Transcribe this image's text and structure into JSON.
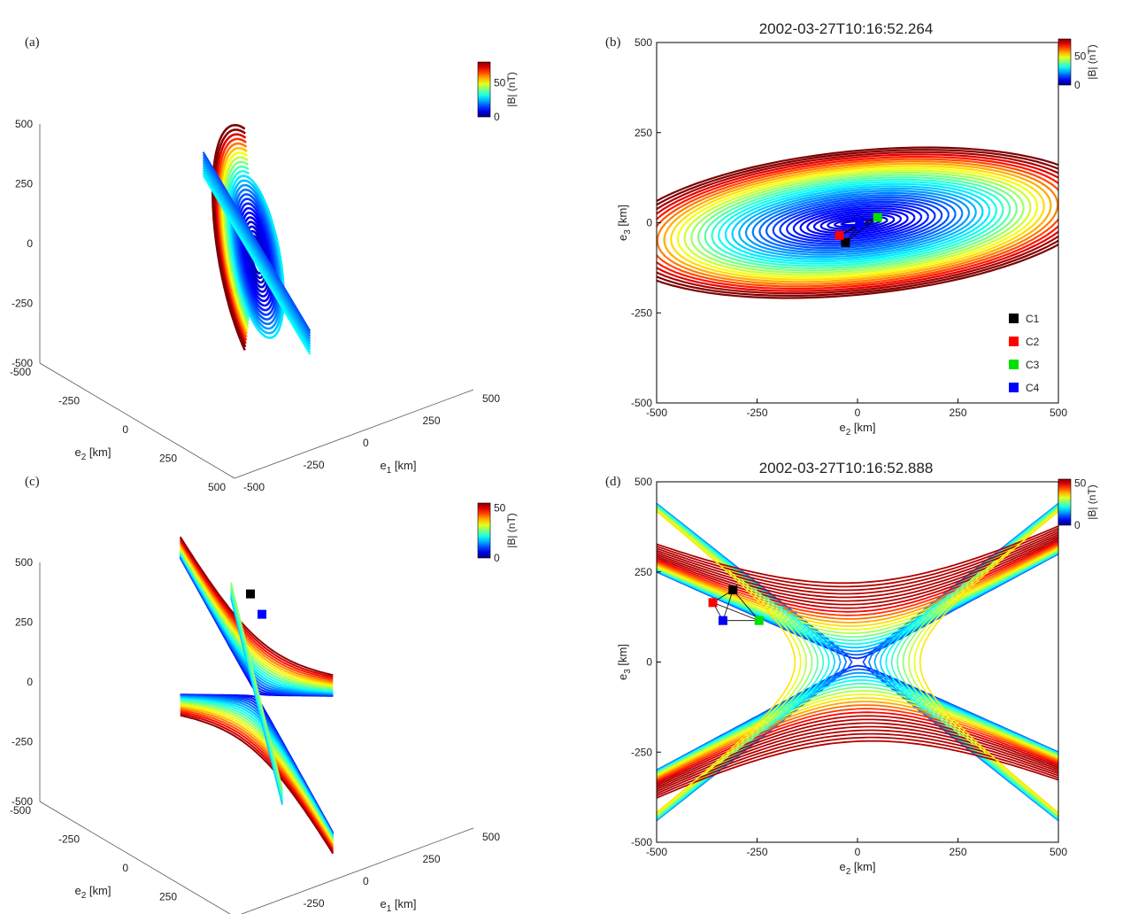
{
  "chart_data": [
    {
      "panel": "(a)",
      "type": "line",
      "view": "3d",
      "title": "",
      "axes": {
        "e1": {
          "label": "e",
          "sub": "1",
          "unit": " [km]",
          "ticks": [
            -500,
            -250,
            0,
            250,
            500
          ]
        },
        "e2": {
          "label": "e",
          "sub": "2",
          "unit": " [km]",
          "ticks": [
            -500,
            -250,
            0,
            250,
            500
          ]
        },
        "e3": {
          "label": "e",
          "sub": "3",
          "unit": " [km]",
          "ticks": [
            -500,
            -250,
            0,
            250,
            500
          ]
        }
      },
      "xlim": [
        -500,
        500
      ],
      "ylim": [
        -500,
        500
      ],
      "colorbar": {
        "label": "|B| (nT)",
        "ticks": [
          0,
          50
        ],
        "ticklabels": [
          "0",
          "50"
        ],
        "max": 80
      },
      "grid": false
    },
    {
      "panel": "(b)",
      "type": "line",
      "view": "e2-e3 projection",
      "title": "2002-03-27T10:16:52.264",
      "xlabel": {
        "label": "e",
        "sub": "2",
        "unit": " [km]"
      },
      "ylabel": {
        "label": "e",
        "sub": "3",
        "unit": " [km]"
      },
      "xlim": [
        -500,
        500
      ],
      "ylim": [
        -500,
        500
      ],
      "xticks": [
        -500,
        -250,
        0,
        250,
        500
      ],
      "yticks": [
        -500,
        -250,
        0,
        250,
        500
      ],
      "colorbar": {
        "label": "|B| (nT)",
        "ticks": [
          0,
          50
        ],
        "ticklabels": [
          "0",
          "50"
        ],
        "max": 80
      },
      "structure": "O-line",
      "spacecraft": [
        {
          "name": "C1",
          "color": "#000000",
          "x": -30,
          "y": -55
        },
        {
          "name": "C2",
          "color": "#ff0000",
          "x": -45,
          "y": -35
        },
        {
          "name": "C3",
          "color": "#00e000",
          "x": 50,
          "y": 15
        },
        {
          "name": "C4",
          "color": "#0000ff",
          "x": 5,
          "y": -5
        }
      ],
      "legend": "bottom-right",
      "grid": false
    },
    {
      "panel": "(c)",
      "type": "line",
      "view": "3d",
      "title": "",
      "axes": {
        "e1": {
          "label": "e",
          "sub": "1",
          "unit": " [km]",
          "ticks": [
            -500,
            -250,
            0,
            250,
            500
          ]
        },
        "e2": {
          "label": "e",
          "sub": "2",
          "unit": " [km]",
          "ticks": [
            -500,
            -250,
            0,
            250,
            500
          ]
        },
        "e3": {
          "label": "e",
          "sub": "3",
          "unit": " [km]",
          "ticks": [
            -500,
            -250,
            0,
            250,
            500
          ]
        }
      },
      "xlim": [
        -500,
        500
      ],
      "ylim": [
        -500,
        500
      ],
      "colorbar": {
        "label": "|B| (nT)",
        "ticks": [
          0,
          50
        ],
        "ticklabels": [
          "0",
          "50"
        ],
        "max": 55
      },
      "grid": false
    },
    {
      "panel": "(d)",
      "type": "line",
      "view": "e2-e3 projection",
      "title": "2002-03-27T10:16:52.888",
      "xlabel": {
        "label": "e",
        "sub": "2",
        "unit": " [km]"
      },
      "ylabel": {
        "label": "e",
        "sub": "3",
        "unit": " [km]"
      },
      "xlim": [
        -500,
        500
      ],
      "ylim": [
        -500,
        500
      ],
      "xticks": [
        -500,
        -250,
        0,
        250,
        500
      ],
      "yticks": [
        -500,
        -250,
        0,
        250,
        500
      ],
      "colorbar": {
        "label": "|B| (nT)",
        "ticks": [
          0,
          50
        ],
        "ticklabels": [
          "0",
          "50"
        ],
        "max": 55
      },
      "structure": "X-line",
      "spacecraft": [
        {
          "name": "C1",
          "color": "#000000",
          "x": -310,
          "y": 200
        },
        {
          "name": "C2",
          "color": "#ff0000",
          "x": -360,
          "y": 165
        },
        {
          "name": "C3",
          "color": "#00e000",
          "x": -245,
          "y": 115
        },
        {
          "name": "C4",
          "color": "#0000ff",
          "x": -335,
          "y": 115
        }
      ],
      "grid": false
    }
  ]
}
